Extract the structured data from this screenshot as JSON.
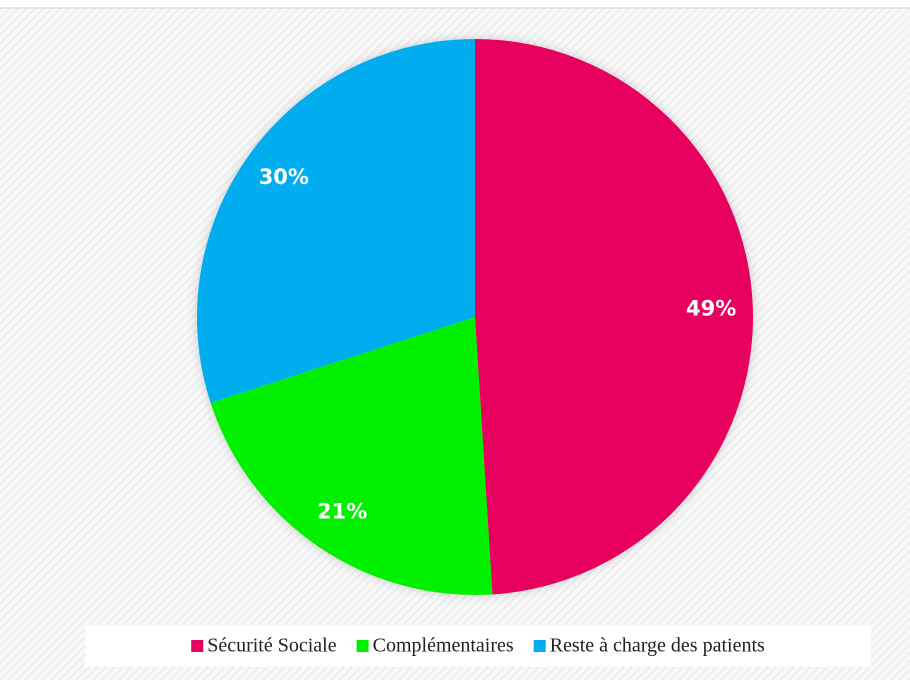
{
  "chart_data": {
    "type": "pie",
    "categories": [
      "Sécurité Sociale",
      "Complémentaires",
      "Reste à charge des patients"
    ],
    "values": [
      49,
      21,
      30
    ],
    "value_labels": [
      "49%",
      "21%",
      "30%"
    ],
    "colors": [
      "#e8005e",
      "#00f000",
      "#00aeef"
    ],
    "legend": "bottom"
  }
}
